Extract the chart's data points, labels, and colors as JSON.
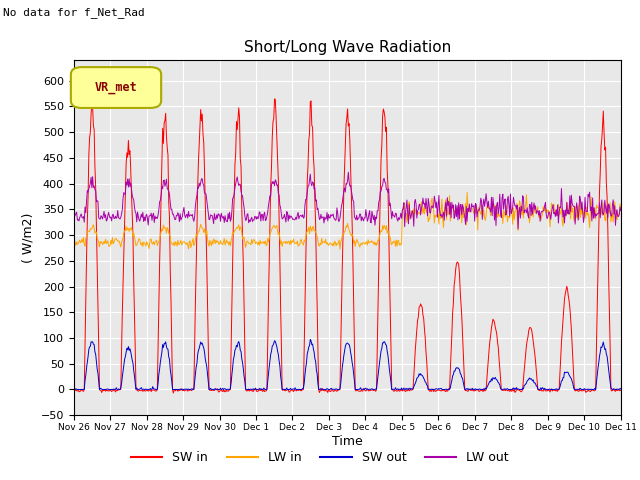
{
  "title": "Short/Long Wave Radiation",
  "xlabel": "Time",
  "ylabel": "( W/m2)",
  "ylim": [
    -50,
    640
  ],
  "yticks": [
    -50,
    0,
    50,
    100,
    150,
    200,
    250,
    300,
    350,
    400,
    450,
    500,
    550,
    600
  ],
  "annotation_top_left": "No data for f_Net_Rad",
  "legend_label": "VR_met",
  "line_colors": {
    "SW_in": "#ff0000",
    "LW_in": "#ffa500",
    "SW_out": "#0000cc",
    "LW_out": "#aa00aa"
  },
  "background_color": "#e8e8e8",
  "fig_facecolor": "#ffffff",
  "grid_color": "#ffffff",
  "tick_labels": [
    "Nov 26",
    "Nov 27",
    "Nov 28",
    "Nov 29",
    "Nov 30",
    "Dec 1",
    "Dec 2",
    "Dec 3",
    "Dec 4",
    "Dec 5",
    "Dec 6",
    "Dec 7",
    "Dec 8",
    "Dec 9",
    "Dec 10",
    "Dec 11"
  ]
}
